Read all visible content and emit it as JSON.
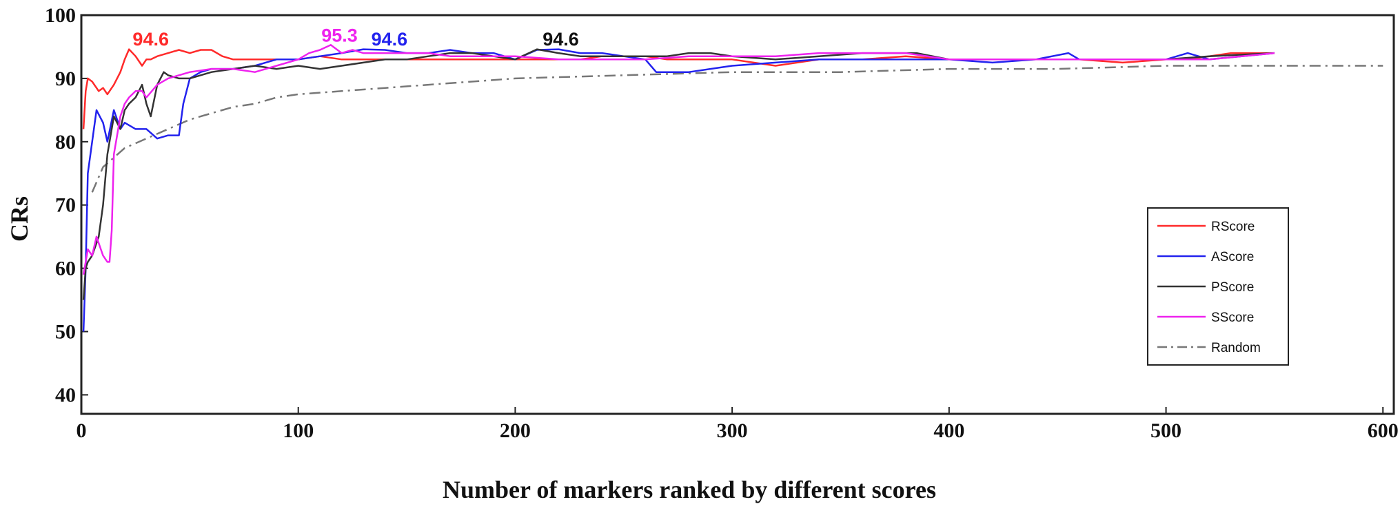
{
  "chart_data": {
    "type": "line",
    "title": "",
    "xlabel": "Number of markers ranked by different scores",
    "ylabel": "CRs",
    "xlim": [
      0,
      605
    ],
    "ylim": [
      37,
      100
    ],
    "xticks": [
      0,
      100,
      200,
      300,
      400,
      500,
      600
    ],
    "xtick_labels": [
      "0",
      "100",
      "200",
      "300",
      "400",
      "500",
      "600"
    ],
    "yticks": [
      40,
      50,
      60,
      70,
      80,
      90,
      100
    ],
    "ytick_labels": [
      "40",
      "50",
      "60",
      "70",
      "80",
      "90",
      "100"
    ],
    "grid": true,
    "legend_position": "right",
    "series": [
      {
        "name": "RScore",
        "color": "#ff2a2a",
        "dash": "solid",
        "x": [
          1,
          2,
          3,
          5,
          8,
          10,
          12,
          15,
          18,
          20,
          22,
          25,
          28,
          30,
          32,
          35,
          40,
          45,
          50,
          55,
          60,
          65,
          70,
          80,
          90,
          100,
          110,
          120,
          130,
          140,
          150,
          160,
          170,
          180,
          190,
          200,
          210,
          220,
          230,
          240,
          250,
          260,
          270,
          280,
          300,
          320,
          340,
          360,
          380,
          400,
          420,
          440,
          460,
          480,
          500,
          510,
          520,
          530,
          550
        ],
        "values": [
          82,
          88,
          90,
          89.5,
          88,
          88.5,
          87.5,
          89,
          91,
          93,
          94.6,
          93.5,
          92,
          93,
          93,
          93.5,
          94,
          94.5,
          94,
          94.5,
          94.5,
          93.5,
          93,
          93,
          93,
          93,
          93.5,
          93,
          93,
          93,
          93,
          93,
          93,
          93,
          93,
          93,
          93,
          93,
          93,
          93.5,
          93.5,
          93.5,
          93,
          93,
          93,
          92,
          93,
          93,
          93.5,
          93,
          93,
          93,
          93,
          92.5,
          93,
          93,
          93.5,
          94,
          94
        ]
      },
      {
        "name": "AScore",
        "color": "#2222ee",
        "dash": "solid",
        "x": [
          1,
          2,
          3,
          5,
          7,
          10,
          12,
          15,
          18,
          20,
          25,
          30,
          35,
          40,
          45,
          47,
          50,
          55,
          60,
          70,
          80,
          90,
          100,
          110,
          120,
          130,
          140,
          150,
          160,
          170,
          180,
          190,
          200,
          210,
          220,
          230,
          240,
          250,
          260,
          265,
          270,
          280,
          300,
          320,
          340,
          360,
          380,
          400,
          420,
          440,
          455,
          460,
          470,
          500,
          510,
          520,
          550
        ],
        "values": [
          50,
          60,
          75,
          80,
          85,
          83,
          80,
          85,
          82,
          83,
          82,
          82,
          80.5,
          81,
          81,
          86,
          90,
          91,
          91.5,
          91.5,
          92,
          93,
          93,
          93.5,
          94,
          94.6,
          94.5,
          94,
          94,
          94.5,
          94,
          94,
          93,
          94.5,
          94.6,
          94,
          94,
          93.5,
          93,
          91,
          91,
          91,
          92,
          92.5,
          93,
          93,
          93,
          93,
          92.5,
          93,
          94,
          93,
          93,
          93,
          94,
          93,
          94
        ]
      },
      {
        "name": "PScore",
        "color": "#333333",
        "dash": "solid",
        "x": [
          1,
          2,
          3,
          5,
          8,
          10,
          12,
          15,
          18,
          20,
          22,
          25,
          28,
          30,
          32,
          35,
          38,
          40,
          45,
          50,
          60,
          70,
          80,
          90,
          100,
          110,
          120,
          130,
          140,
          150,
          160,
          170,
          180,
          190,
          200,
          210,
          220,
          230,
          240,
          250,
          260,
          270,
          280,
          290,
          300,
          320,
          340,
          360,
          380,
          385,
          400,
          420,
          440,
          460,
          480,
          500,
          520,
          550
        ],
        "values": [
          55,
          60,
          61,
          62,
          65,
          70,
          78,
          84,
          82,
          85,
          86,
          87,
          89,
          86,
          84,
          89,
          91,
          90.5,
          90,
          90,
          91,
          91.5,
          92,
          91.5,
          92,
          91.5,
          92,
          92.5,
          93,
          93,
          93.5,
          94,
          94,
          93.5,
          93,
          94.6,
          94,
          93.5,
          93.5,
          93.5,
          93.5,
          93.5,
          94,
          94,
          93.5,
          93,
          93.5,
          94,
          94,
          94,
          93,
          93,
          93,
          93,
          93,
          93,
          93.5,
          94
        ]
      },
      {
        "name": "SScore",
        "color": "#ee22ee",
        "dash": "solid",
        "x": [
          1,
          2,
          3,
          5,
          7,
          9,
          10,
          12,
          13,
          14,
          15,
          18,
          20,
          22,
          25,
          28,
          30,
          35,
          40,
          50,
          60,
          70,
          80,
          90,
          100,
          105,
          110,
          115,
          120,
          125,
          130,
          140,
          150,
          160,
          170,
          180,
          200,
          220,
          240,
          260,
          280,
          300,
          320,
          340,
          360,
          380,
          400,
          420,
          440,
          460,
          480,
          500,
          520,
          550
        ],
        "values": [
          59,
          61,
          63,
          62,
          65,
          63,
          62,
          61,
          61,
          66,
          78,
          84,
          86,
          87,
          88,
          88,
          87,
          89,
          90,
          91,
          91.5,
          91.5,
          91,
          92,
          93,
          94,
          94.5,
          95.3,
          94,
          94.5,
          94,
          94,
          94,
          94,
          93.5,
          93.5,
          93.5,
          93,
          93,
          93,
          93.5,
          93.5,
          93.5,
          94,
          94,
          94,
          93,
          93,
          93,
          93,
          93,
          93,
          93,
          94
        ]
      },
      {
        "name": "Random",
        "color": "#777777",
        "dash": "dashdot",
        "x": [
          5,
          10,
          20,
          30,
          40,
          50,
          60,
          70,
          80,
          90,
          100,
          120,
          140,
          160,
          180,
          200,
          250,
          300,
          350,
          400,
          450,
          500,
          550,
          600
        ],
        "values": [
          72,
          76,
          79,
          80.5,
          82,
          83.5,
          84.5,
          85.5,
          86,
          87,
          87.5,
          88,
          88.5,
          89,
          89.5,
          90,
          90.5,
          91,
          91,
          91.5,
          91.5,
          92,
          92,
          92
        ]
      }
    ],
    "annotations": [
      {
        "text": "94.6",
        "x": 32,
        "y": 95.2,
        "color": "#ff2a2a"
      },
      {
        "text": "95.3",
        "x": 119,
        "y": 95.8,
        "color": "#ee22ee"
      },
      {
        "text": "94.6",
        "x": 142,
        "y": 95.2,
        "color": "#2222ee"
      },
      {
        "text": "94.6",
        "x": 221,
        "y": 95.2,
        "color": "#111111"
      }
    ]
  }
}
